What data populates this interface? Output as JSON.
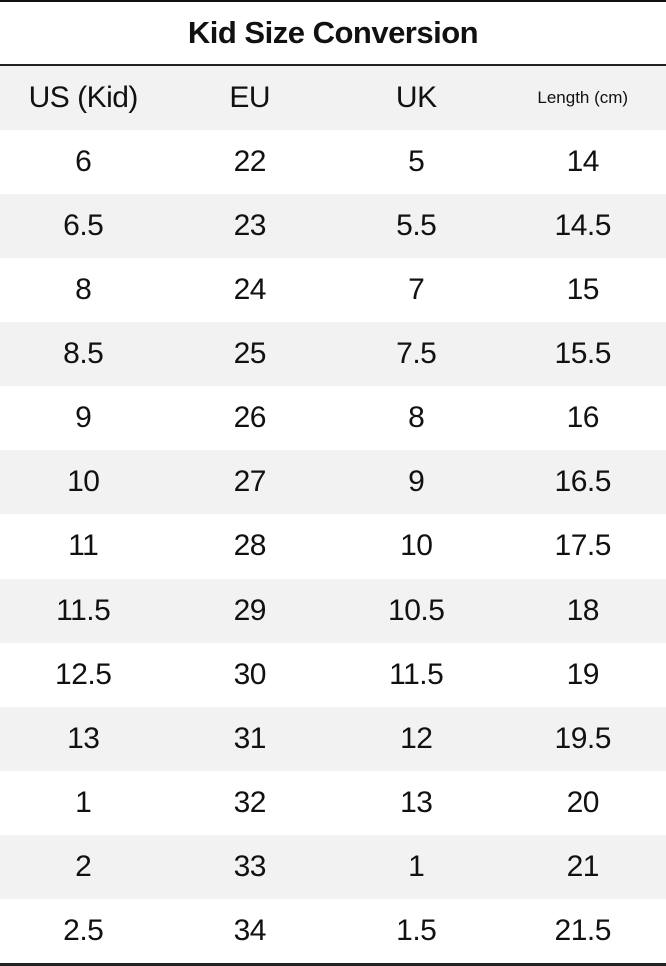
{
  "title": "Kid Size Conversion",
  "columns": [
    "US (Kid)",
    "EU",
    "UK",
    "Length (cm)"
  ],
  "rows": [
    [
      "6",
      "22",
      "5",
      "14"
    ],
    [
      "6.5",
      "23",
      "5.5",
      "14.5"
    ],
    [
      "8",
      "24",
      "7",
      "15"
    ],
    [
      "8.5",
      "25",
      "7.5",
      "15.5"
    ],
    [
      "9",
      "26",
      "8",
      "16"
    ],
    [
      "10",
      "27",
      "9",
      "16.5"
    ],
    [
      "11",
      "28",
      "10",
      "17.5"
    ],
    [
      "11.5",
      "29",
      "10.5",
      "18"
    ],
    [
      "12.5",
      "30",
      "11.5",
      "19"
    ],
    [
      "13",
      "31",
      "12",
      "19.5"
    ],
    [
      "1",
      "32",
      "13",
      "20"
    ],
    [
      "2",
      "33",
      "1",
      "21"
    ],
    [
      "2.5",
      "34",
      "1.5",
      "21.5"
    ]
  ],
  "colors": {
    "stripe": "#f2f2f2",
    "rule": "#222222"
  }
}
